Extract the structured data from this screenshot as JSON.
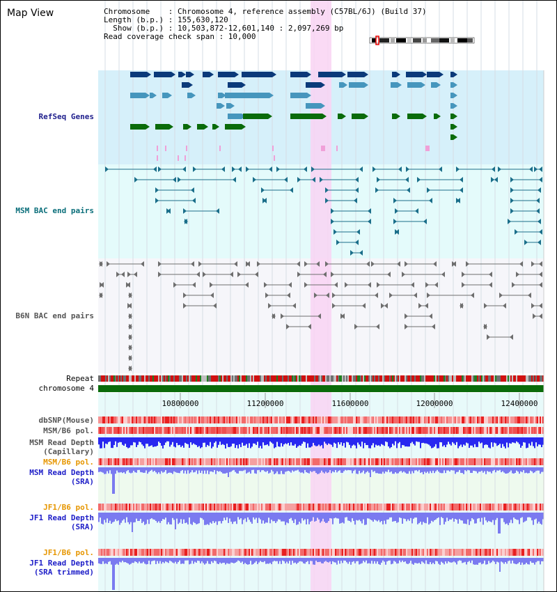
{
  "view_title": "Map View",
  "info": {
    "lines": [
      "Chromosome    : Chromosome 4, reference assembly (C57BL/6J) (Build 37)",
      "Length (b.p.) : 155,630,120",
      "  Show (b.p.) : 10,503,872-12,601,140 : 2,097,269 bp",
      "Read coverage check span : 10,000"
    ]
  },
  "tracks": {
    "refseq": "RefSeq Genes",
    "msm_bac": "MSM BAC end pairs",
    "b6n_bac": "B6N BAC end pairs",
    "repeat": "Repeat",
    "chromosome": "chromosome 4",
    "dbsnp": "dbSNP(Mouse)",
    "msm_pol": "MSM/B6 pol.",
    "msm_depth_cap_1": "MSM Read Depth",
    "msm_depth_cap_2": "(Capillary)",
    "msm_pol_2": "MSM/B6 pol.",
    "msm_depth_sra_1": "MSM Read Depth",
    "msm_depth_sra_2": "(SRA)",
    "jf1_pol": "JF1/B6 pol.",
    "jf1_depth_1": "JF1 Read Depth",
    "jf1_depth_2": "(SRA)",
    "jf1_pol_2": "JF1/B6 pol.",
    "jf1_trim_1": "JF1 Read Depth",
    "jf1_trim_2": "(SRA trimmed)"
  },
  "axis": {
    "ticks": [
      "10800000",
      "11200000",
      "11600000",
      "12000000",
      "12400000"
    ]
  },
  "colors": {
    "highlight": "#f9d4f3",
    "refseq_bg": "#d6f0fa",
    "msm_bg": "#e4fbfb",
    "b6n_bg": "#f6f6fa",
    "gene_dark": "#0b3a7a",
    "gene_mid": "#4696bd",
    "gene_green": "#0a6b0a",
    "bac_teal": "#1a6e8a",
    "bac_gray": "#6e6e6e",
    "label_navy": "#1e1e8c",
    "label_teal": "#0a6e7a",
    "label_orange": "#e69600",
    "label_blue": "#1e1ec8",
    "depth_blue": "#2828f0",
    "depth_light": "#7a7af0"
  }
}
